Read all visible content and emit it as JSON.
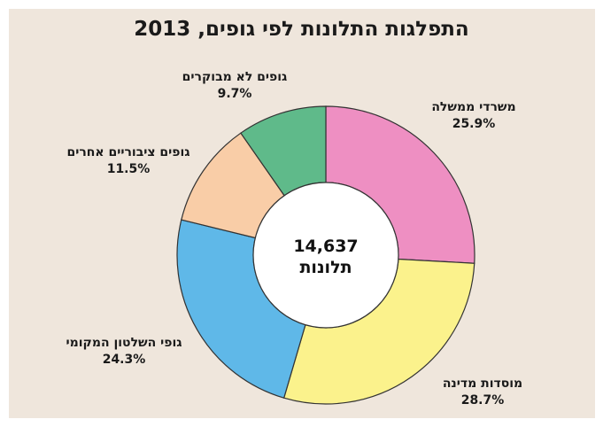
{
  "chart_data": {
    "type": "pie",
    "title": "התפלגות התלונות לפי גופים, 2013",
    "center": {
      "value": "14,637",
      "label": "תלונות"
    },
    "slices": [
      {
        "label": "משרדי ממשלה",
        "value": 25.9,
        "pct_label": "25.9%",
        "color": "#ee8fc2"
      },
      {
        "label": "מוסדות מדינה",
        "value": 28.7,
        "pct_label": "28.7%",
        "color": "#fbf28c"
      },
      {
        "label": "גופי השלטון המקומי",
        "value": 24.3,
        "pct_label": "24.3%",
        "color": "#5fb8e8"
      },
      {
        "label": "גופים ציבוריים אחרים",
        "value": 11.5,
        "pct_label": "11.5%",
        "color": "#f9cda7"
      },
      {
        "label": "גופים לא מבוקרים",
        "value": 9.7,
        "pct_label": "9.7%",
        "color": "#5fba8a"
      }
    ]
  }
}
